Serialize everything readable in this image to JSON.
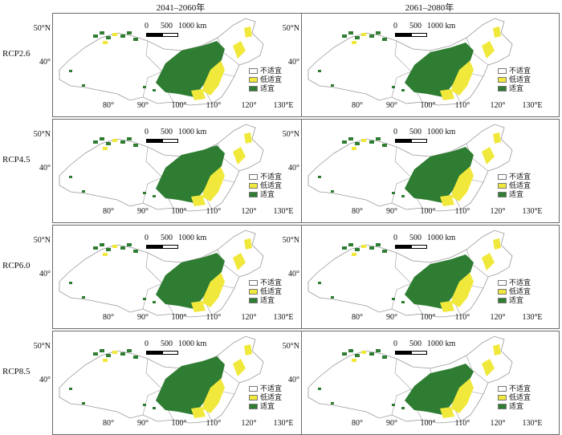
{
  "column_headers": [
    "2041–2060年",
    "2061–2080年"
  ],
  "row_labels": [
    "RCP2.6",
    "RCP4.5",
    "RCP6.0",
    "RCP8.5"
  ],
  "lat_labels": [
    "50°N",
    "40°"
  ],
  "lon_labels": [
    "80°",
    "90°",
    "100°",
    "110°",
    "120°",
    "130°E"
  ],
  "scale_bar": {
    "zero": "0",
    "mid": "500",
    "end": "1000 km"
  },
  "legend": [
    {
      "label": "不适宜",
      "color": "#ffffff"
    },
    {
      "label": "低适宜",
      "color": "#f0e83a"
    },
    {
      "label": "适宜",
      "color": "#2e7d32"
    }
  ],
  "map_colors": {
    "suitable": "#2e7d32",
    "low_suitable": "#f0e83a",
    "unsuitable": "#ffffff",
    "border": "#9a9a9a"
  },
  "panels": [
    {
      "period": "2041–2060年",
      "scenario": "RCP2.6"
    },
    {
      "period": "2061–2080年",
      "scenario": "RCP2.6"
    },
    {
      "period": "2041–2060年",
      "scenario": "RCP4.5"
    },
    {
      "period": "2061–2080年",
      "scenario": "RCP4.5"
    },
    {
      "period": "2041–2060年",
      "scenario": "RCP6.0"
    },
    {
      "period": "2061–2080年",
      "scenario": "RCP6.0"
    },
    {
      "period": "2041–2060年",
      "scenario": "RCP8.5"
    },
    {
      "period": "2061–2080年",
      "scenario": "RCP8.5"
    }
  ]
}
